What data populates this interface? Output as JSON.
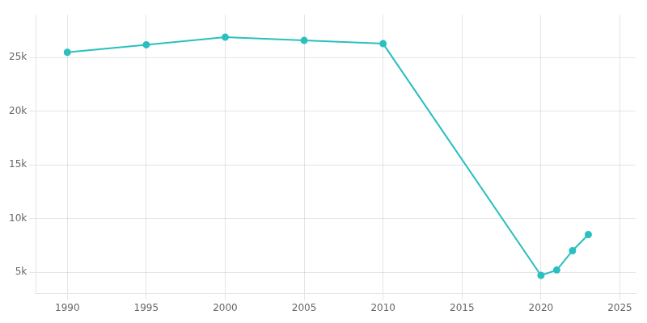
{
  "chart_data": {
    "type": "line",
    "x": [
      1990,
      1995,
      2000,
      2005,
      2010,
      2020,
      2021,
      2022,
      2023
    ],
    "values": [
      25500,
      26200,
      26900,
      26600,
      26300,
      4700,
      5200,
      7000,
      8500
    ],
    "color": "#2bbfbf",
    "marker": "circle",
    "xlim": [
      1988,
      2026
    ],
    "xticks": [
      1990,
      1995,
      2000,
      2005,
      2010,
      2015,
      2020,
      2025
    ],
    "ylim": [
      3000,
      29000
    ],
    "yticks": [
      {
        "value": 5000,
        "label": "5k"
      },
      {
        "value": 10000,
        "label": "10k"
      },
      {
        "value": 15000,
        "label": "15k"
      },
      {
        "value": 20000,
        "label": "20k"
      },
      {
        "value": 25000,
        "label": "25k"
      }
    ],
    "grid": true
  }
}
